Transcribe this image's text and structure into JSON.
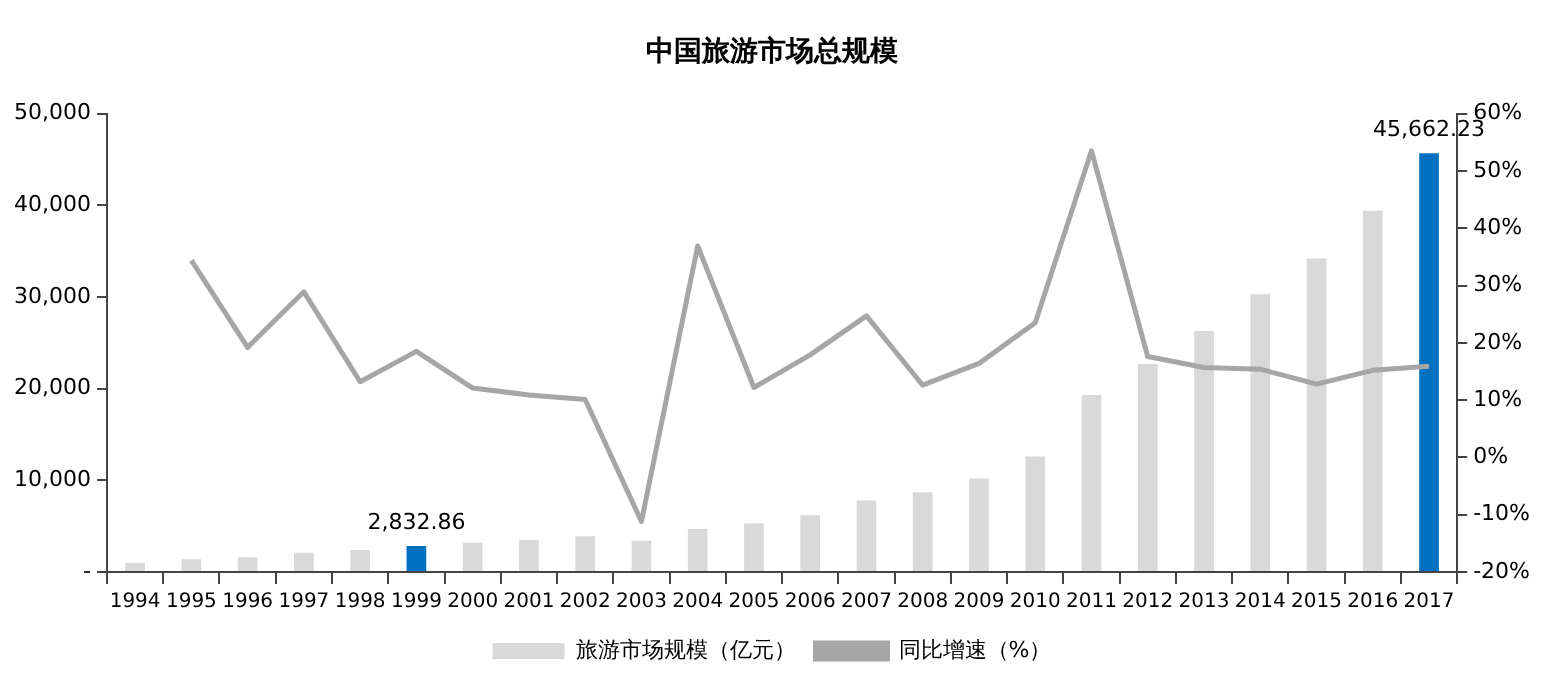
{
  "chart_data": {
    "type": "bar",
    "title": "中国旅游市场总规模",
    "categories": [
      "1994",
      "1995",
      "1996",
      "1997",
      "1998",
      "1999",
      "2000",
      "2001",
      "2002",
      "2003",
      "2004",
      "2005",
      "2006",
      "2007",
      "2008",
      "2009",
      "2010",
      "2011",
      "2012",
      "2013",
      "2014",
      "2015",
      "2016",
      "2017"
    ],
    "series": [
      {
        "name": "旅游市场规模（亿元）",
        "color": "#d9d9d9",
        "colors": [
          "#d9d9d9",
          "#d9d9d9",
          "#d9d9d9",
          "#d9d9d9",
          "#d9d9d9",
          "#0070c0",
          "#d9d9d9",
          "#d9d9d9",
          "#d9d9d9",
          "#d9d9d9",
          "#d9d9d9",
          "#d9d9d9",
          "#d9d9d9",
          "#d9d9d9",
          "#d9d9d9",
          "#d9d9d9",
          "#d9d9d9",
          "#d9d9d9",
          "#d9d9d9",
          "#d9d9d9",
          "#d9d9d9",
          "#d9d9d9",
          "#d9d9d9",
          "#0070c0"
        ],
        "values": [
          1000,
          1400,
          1600,
          2100,
          2400,
          2832.86,
          3200,
          3500,
          3900,
          3400,
          4700,
          5300,
          6200,
          7800,
          8700,
          10200,
          12600,
          19300,
          22700,
          26300,
          30300,
          34200,
          39400,
          45662.23
        ],
        "value_labels": [
          null,
          null,
          null,
          null,
          null,
          "2,832.86",
          null,
          null,
          null,
          null,
          null,
          null,
          null,
          null,
          null,
          null,
          null,
          null,
          null,
          null,
          null,
          null,
          null,
          "45,662.23"
        ]
      },
      {
        "name": "同比增速（%）",
        "type": "line",
        "axis": "y2",
        "color": "#a6a6a6",
        "values": [
          null,
          34.4,
          19.2,
          28.9,
          13.2,
          18.5,
          12.1,
          10.9,
          10.1,
          -11.2,
          36.9,
          12.2,
          17.9,
          24.7,
          12.6,
          16.4,
          23.5,
          53.5,
          17.6,
          15.7,
          15.4,
          12.8,
          15.2,
          15.9
        ]
      }
    ],
    "ylim": [
      0,
      50000
    ],
    "yticks": [
      {
        "value": 0,
        "label": "-"
      },
      {
        "value": 10000,
        "label": "10,000"
      },
      {
        "value": 20000,
        "label": "20,000"
      },
      {
        "value": 30000,
        "label": "30,000"
      },
      {
        "value": 40000,
        "label": "40,000"
      },
      {
        "value": 50000,
        "label": "50,000"
      }
    ],
    "y2lim": [
      -20,
      60
    ],
    "y2ticks": [
      {
        "value": -20,
        "label": "-20%"
      },
      {
        "value": -10,
        "label": "-10%"
      },
      {
        "value": 0,
        "label": "0%"
      },
      {
        "value": 10,
        "label": "10%"
      },
      {
        "value": 20,
        "label": "20%"
      },
      {
        "value": 30,
        "label": "30%"
      },
      {
        "value": 40,
        "label": "40%"
      },
      {
        "value": 50,
        "label": "50%"
      },
      {
        "value": 60,
        "label": "60%"
      }
    ],
    "grid": false,
    "legend": "bottom",
    "marker": "none",
    "line_style": "solid"
  }
}
